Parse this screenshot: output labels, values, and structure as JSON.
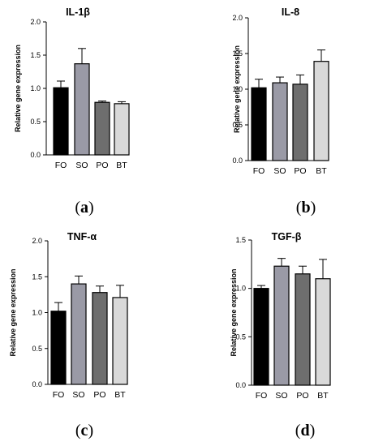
{
  "chart_data": [
    {
      "type": "bar",
      "panel_label": "a",
      "title": "IL-1β",
      "ylabel": "Relative gene expression",
      "ylim": [
        0,
        2.0
      ],
      "yticks": [
        "0.0",
        "0.5",
        "1.0",
        "1.5",
        "2.0"
      ],
      "categories": [
        "FO",
        "SO",
        "PO",
        "BT"
      ],
      "values": [
        1.01,
        1.37,
        0.79,
        0.77
      ],
      "errors": [
        0.1,
        0.23,
        0.02,
        0.03
      ],
      "colors": [
        "#000000",
        "#9a9aa6",
        "#6e6e6e",
        "#d9d9d9"
      ]
    },
    {
      "type": "bar",
      "panel_label": "b",
      "title": "IL-8",
      "ylabel": "Relative gene expression",
      "ylim": [
        0,
        2.0
      ],
      "yticks": [
        "0.0",
        "0.5",
        "1.0",
        "1.5",
        "2.0"
      ],
      "categories": [
        "FO",
        "SO",
        "PO",
        "BT"
      ],
      "values": [
        1.02,
        1.09,
        1.07,
        1.39
      ],
      "errors": [
        0.12,
        0.08,
        0.13,
        0.16
      ],
      "colors": [
        "#000000",
        "#9a9aa6",
        "#6e6e6e",
        "#d9d9d9"
      ]
    },
    {
      "type": "bar",
      "panel_label": "c",
      "title": "TNF-α",
      "ylabel": "Relative gene expression",
      "ylim": [
        0,
        2.0
      ],
      "yticks": [
        "0.0",
        "0.5",
        "1.0",
        "1.5",
        "2.0"
      ],
      "categories": [
        "FO",
        "SO",
        "PO",
        "BT"
      ],
      "values": [
        1.02,
        1.4,
        1.28,
        1.21
      ],
      "errors": [
        0.12,
        0.11,
        0.09,
        0.17
      ],
      "colors": [
        "#000000",
        "#9a9aa6",
        "#6e6e6e",
        "#d9d9d9"
      ]
    },
    {
      "type": "bar",
      "panel_label": "d",
      "title": "TGF-β",
      "ylabel": "Relative gene expression",
      "ylim": [
        0,
        1.5
      ],
      "yticks": [
        "0.0",
        "0.5",
        "1.0",
        "1.5"
      ],
      "categories": [
        "FO",
        "SO",
        "PO",
        "BT"
      ],
      "values": [
        1.0,
        1.23,
        1.15,
        1.1
      ],
      "errors": [
        0.03,
        0.08,
        0.08,
        0.2
      ],
      "colors": [
        "#000000",
        "#9a9aa6",
        "#6e6e6e",
        "#d9d9d9"
      ]
    }
  ]
}
